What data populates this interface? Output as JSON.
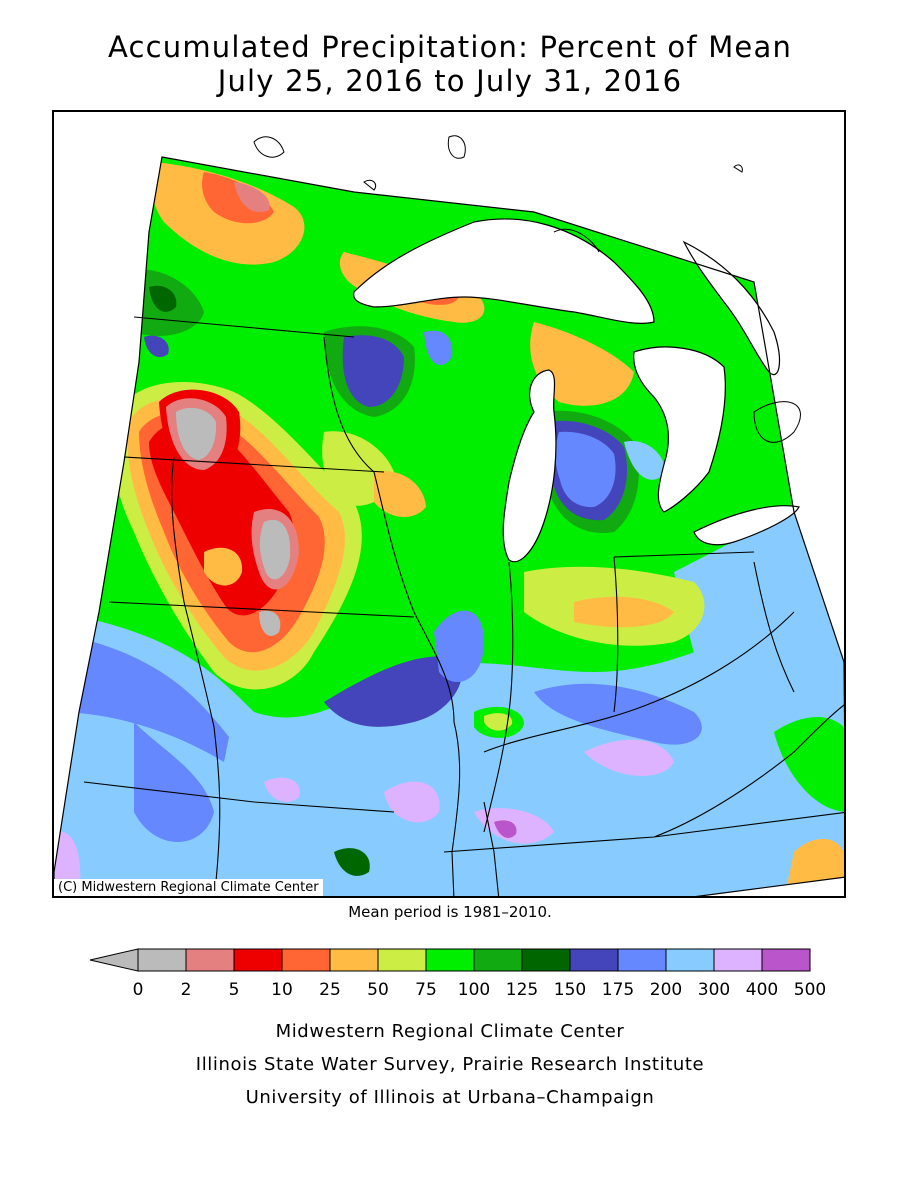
{
  "title": {
    "line1": "Accumulated Precipitation: Percent of Mean",
    "line2": "July 25, 2016 to July 31, 2016"
  },
  "map": {
    "copyright": "(C) Midwestern Regional Climate Center",
    "mean_period_note": "Mean period is 1981–2010."
  },
  "legend": {
    "ticks": [
      "0",
      "2",
      "5",
      "10",
      "25",
      "50",
      "75",
      "100",
      "125",
      "150",
      "175",
      "200",
      "300",
      "400",
      "500"
    ],
    "bins": [
      {
        "range": "0-2",
        "color": "#bbbbbb"
      },
      {
        "range": "2-5",
        "color": "#e58080"
      },
      {
        "range": "5-10",
        "color": "#ee0000"
      },
      {
        "range": "10-25",
        "color": "#ff6633"
      },
      {
        "range": "25-50",
        "color": "#ffbb44"
      },
      {
        "range": "50-75",
        "color": "#ccee44"
      },
      {
        "range": "75-100",
        "color": "#00ee00"
      },
      {
        "range": "100-125",
        "color": "#11aa11"
      },
      {
        "range": "125-150",
        "color": "#006600"
      },
      {
        "range": "150-175",
        "color": "#4444bb"
      },
      {
        "range": "175-200",
        "color": "#6688ff"
      },
      {
        "range": "200-300",
        "color": "#88ccff"
      },
      {
        "range": "300-400",
        "color": "#ddb3ff"
      },
      {
        "range": "400-500",
        "color": "#bb55cc"
      }
    ]
  },
  "credits": {
    "line1": "Midwestern Regional Climate Center",
    "line2": "Illinois State Water Survey, Prairie Research Institute",
    "line3": "University of Illinois at Urbana–Champaign"
  }
}
